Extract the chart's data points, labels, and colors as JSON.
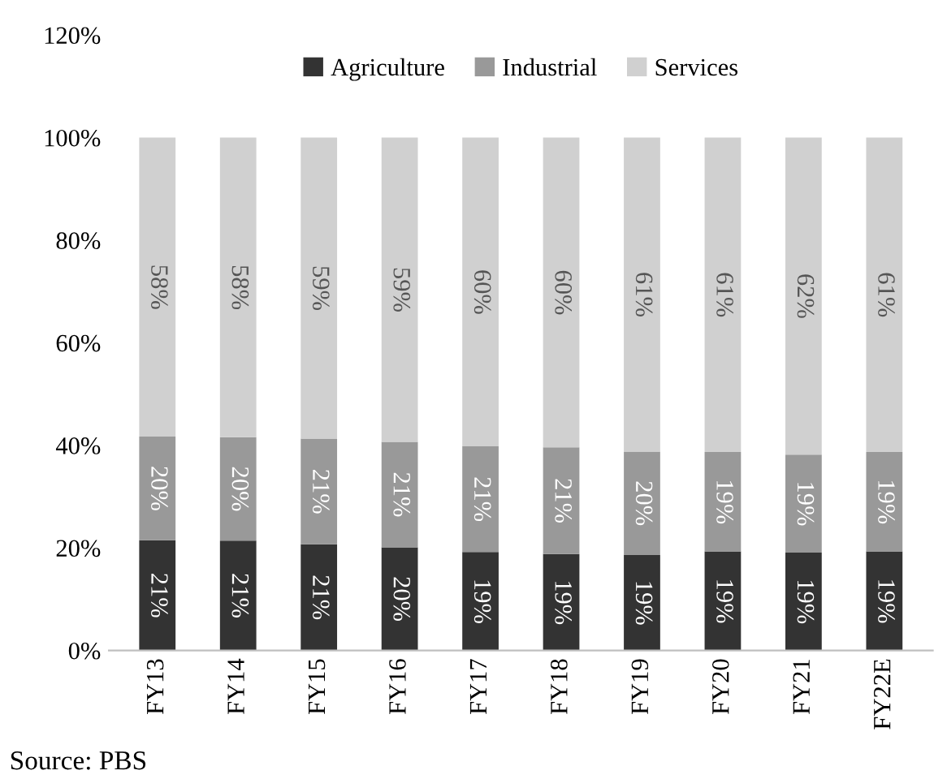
{
  "chart_data": {
    "type": "bar",
    "stacked": true,
    "categories": [
      "FY13",
      "FY14",
      "FY15",
      "FY16",
      "FY17",
      "FY18",
      "FY19",
      "FY20",
      "FY21",
      "FY22E"
    ],
    "series": [
      {
        "name": "Agriculture",
        "color": "#333333",
        "values": [
          21.5,
          21.4,
          20.7,
          20.1,
          19.2,
          18.8,
          18.6,
          19.3,
          19.1,
          19.3
        ],
        "value_labels": [
          "21%",
          "21%",
          "21%",
          "20%",
          "19%",
          "19%",
          "19%",
          "19%",
          "19%",
          "19%"
        ]
      },
      {
        "name": "Industrial",
        "color": "#999999",
        "values": [
          20.2,
          20.2,
          20.6,
          20.6,
          20.6,
          20.8,
          20.2,
          19.4,
          19.1,
          19.4
        ],
        "value_labels": [
          "20%",
          "20%",
          "21%",
          "21%",
          "21%",
          "21%",
          "20%",
          "19%",
          "19%",
          "19%"
        ]
      },
      {
        "name": "Services",
        "color": "#d0d0d0",
        "values": [
          58.3,
          58.4,
          58.7,
          59.3,
          60.2,
          60.4,
          61.2,
          61.3,
          61.8,
          61.3
        ],
        "value_labels": [
          "58%",
          "58%",
          "59%",
          "59%",
          "60%",
          "60%",
          "61%",
          "61%",
          "62%",
          "61%"
        ]
      }
    ],
    "ylim": [
      0,
      120
    ],
    "yticks": [
      {
        "value": 0,
        "label": "0%"
      },
      {
        "value": 20,
        "label": "20%"
      },
      {
        "value": 40,
        "label": "40%"
      },
      {
        "value": 60,
        "label": "60%"
      },
      {
        "value": 80,
        "label": "80%"
      },
      {
        "value": 100,
        "label": "100%"
      },
      {
        "value": 120,
        "label": "120%"
      }
    ],
    "grid": false,
    "legend": "top",
    "annotations": [
      "Source: PBS"
    ]
  }
}
